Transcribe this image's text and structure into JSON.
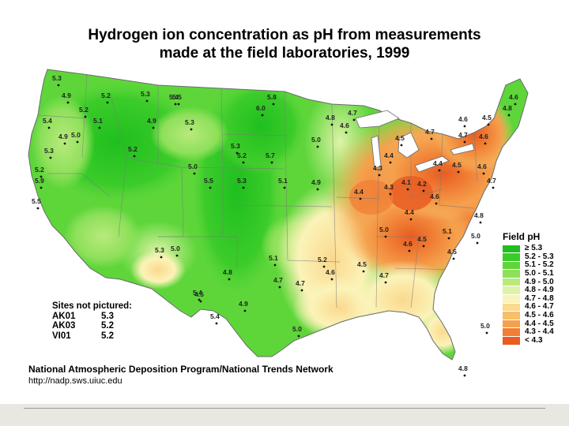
{
  "title_line1": "Hydrogen ion concentration as pH from measurements",
  "title_line2": "made at the field laboratories, 1999",
  "legend": {
    "title": "Field pH",
    "classes": [
      {
        "label": "≥ 5.3",
        "color": "#1fbf1f"
      },
      {
        "label": "5.2 - 5.3",
        "color": "#3ccc2a"
      },
      {
        "label": "5.1 - 5.2",
        "color": "#5ed63a"
      },
      {
        "label": "5.0 - 5.1",
        "color": "#8ee05a"
      },
      {
        "label": "4.9 - 5.0",
        "color": "#b8ea7c"
      },
      {
        "label": "4.8 - 4.9",
        "color": "#dff3a8"
      },
      {
        "label": "4.7 - 4.8",
        "color": "#fbf3b8"
      },
      {
        "label": "4.6 - 4.7",
        "color": "#fbd98e"
      },
      {
        "label": "4.5 - 4.6",
        "color": "#f8bf6a"
      },
      {
        "label": "4.4 - 4.5",
        "color": "#f5a04c"
      },
      {
        "label": "4.3 - 4.4",
        "color": "#f07e34"
      },
      {
        "label": "< 4.3",
        "color": "#e85c22"
      }
    ]
  },
  "sites_not_pictured": {
    "heading": "Sites not pictured:",
    "rows": [
      {
        "id": "AK01",
        "value": "5.3"
      },
      {
        "id": "AK03",
        "value": "5.2"
      },
      {
        "id": "VI01",
        "value": "5.2"
      }
    ]
  },
  "footer": {
    "org": "National Atmospheric Deposition Program/National Trends Network",
    "url": "http://nadp.sws.uiuc.edu"
  },
  "site_labels": [
    {
      "v": "5.3"
    },
    {
      "v": "4.9"
    },
    {
      "v": "5.2"
    },
    {
      "v": "5.2"
    },
    {
      "v": "5.3"
    },
    {
      "v": "5.4"
    },
    {
      "v": "5.4"
    },
    {
      "v": "5.1"
    },
    {
      "v": "4.9"
    },
    {
      "v": "5.0"
    },
    {
      "v": "5.3"
    },
    {
      "v": "5.2"
    },
    {
      "v": "5.2"
    },
    {
      "v": "5.9"
    },
    {
      "v": "5.5"
    },
    {
      "v": "4.9"
    },
    {
      "v": "5.3"
    },
    {
      "v": "5.5"
    },
    {
      "v": "5.8"
    },
    {
      "v": "6.0"
    },
    {
      "v": "5.3"
    },
    {
      "v": "5.0"
    },
    {
      "v": "5.2"
    },
    {
      "v": "5.7"
    },
    {
      "v": "5.5"
    },
    {
      "v": "5.3"
    },
    {
      "v": "5.1"
    },
    {
      "v": "4.9"
    },
    {
      "v": "5.0"
    },
    {
      "v": "4.8"
    },
    {
      "v": "4.7"
    },
    {
      "v": "4.6"
    },
    {
      "v": "4.4"
    },
    {
      "v": "4.3"
    },
    {
      "v": "4.1"
    },
    {
      "v": "4.2"
    },
    {
      "v": "4.4"
    },
    {
      "v": "4.5"
    },
    {
      "v": "4.6"
    },
    {
      "v": "4.7"
    },
    {
      "v": "4.8"
    },
    {
      "v": "5.0"
    },
    {
      "v": "5.1"
    },
    {
      "v": "5.3"
    },
    {
      "v": "5.0"
    },
    {
      "v": "4.8"
    },
    {
      "v": "4.5"
    },
    {
      "v": "4.9"
    },
    {
      "v": "4.7"
    },
    {
      "v": "5.4"
    },
    {
      "v": "5.4"
    },
    {
      "v": "5.1"
    },
    {
      "v": "5.2"
    },
    {
      "v": "4.7"
    },
    {
      "v": "4.6"
    },
    {
      "v": "4.5"
    },
    {
      "v": "4.7"
    },
    {
      "v": "5.0"
    },
    {
      "v": "4.6"
    },
    {
      "v": "4.5"
    },
    {
      "v": "4.4"
    },
    {
      "v": "4.6"
    },
    {
      "v": "4.7"
    },
    {
      "v": "4.6"
    },
    {
      "v": "4.3"
    },
    {
      "v": "4.4"
    },
    {
      "v": "4.5"
    },
    {
      "v": "4.7"
    },
    {
      "v": "4.6"
    },
    {
      "v": "4.5"
    },
    {
      "v": "4.8"
    },
    {
      "v": "4.6"
    },
    {
      "v": "4.5"
    },
    {
      "v": "5.0"
    },
    {
      "v": "4.8"
    },
    {
      "v": "5.0"
    }
  ]
}
